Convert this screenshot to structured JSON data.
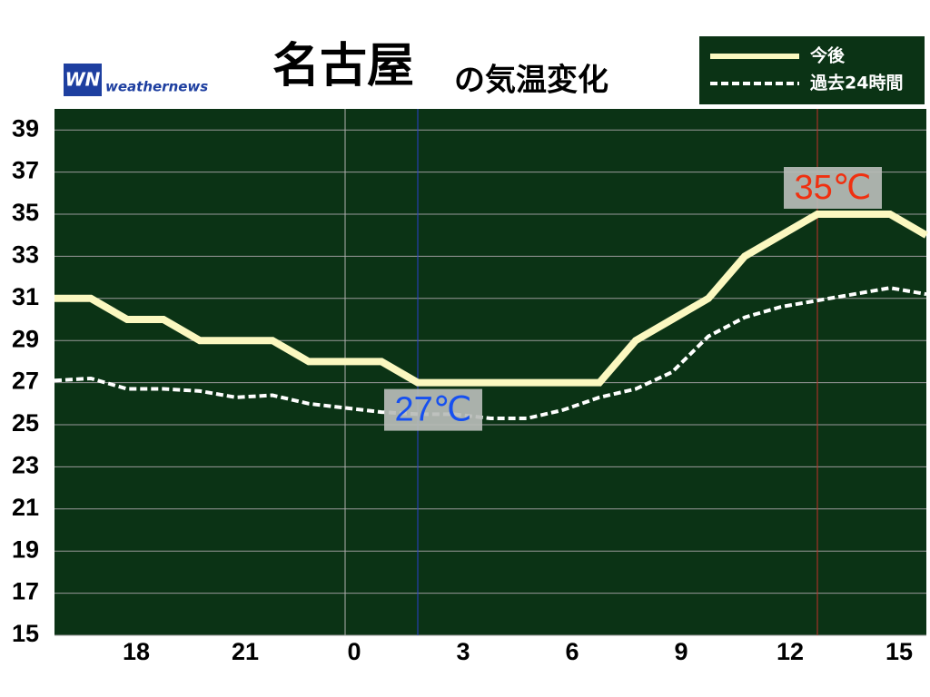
{
  "chart_data": {
    "type": "line",
    "title": "名古屋",
    "subtitle": "の気温変化",
    "logo_mark": "WN",
    "logo_text": "weathernews",
    "x": [
      16,
      17,
      18,
      19,
      20,
      21,
      22,
      23,
      24,
      25,
      26,
      27,
      28,
      29,
      30,
      31,
      32,
      33,
      34,
      35,
      36,
      37,
      38,
      39,
      40
    ],
    "series": [
      {
        "name": "今後",
        "color": "#fbf8c0",
        "style": "solid",
        "values": [
          31,
          31,
          30,
          30,
          29,
          29,
          29,
          28,
          28,
          28,
          27,
          27,
          27,
          27,
          27,
          27,
          29,
          30,
          31,
          33,
          34,
          35,
          35,
          35,
          34
        ]
      },
      {
        "name": "過去24時間",
        "color": "#ffffff",
        "style": "dashed",
        "values": [
          27.1,
          27.2,
          26.7,
          26.7,
          26.6,
          26.3,
          26.4,
          26.0,
          25.8,
          25.6,
          25.5,
          25.5,
          25.3,
          25.3,
          25.7,
          26.3,
          26.7,
          27.5,
          29.2,
          30.1,
          30.6,
          30.9,
          31.2,
          31.5,
          31.2
        ]
      }
    ],
    "xlim": [
      16,
      40
    ],
    "xticks": [
      {
        "value": 18,
        "label": "18"
      },
      {
        "value": 21,
        "label": "21"
      },
      {
        "value": 24,
        "label": "0"
      },
      {
        "value": 27,
        "label": "3"
      },
      {
        "value": 30,
        "label": "6"
      },
      {
        "value": 33,
        "label": "9"
      },
      {
        "value": 36,
        "label": "12"
      },
      {
        "value": 39,
        "label": "15"
      }
    ],
    "ylim": [
      15,
      40
    ],
    "yticks": [
      15,
      17,
      19,
      21,
      23,
      25,
      27,
      29,
      31,
      33,
      35,
      37,
      39
    ],
    "grid": true,
    "background": "#0b3315",
    "vlines": [
      {
        "x": 24,
        "color": "#b0b0b0"
      },
      {
        "x": 26,
        "color": "#2a3fd0"
      },
      {
        "x": 37,
        "color": "#c0302a"
      }
    ],
    "annotations": [
      {
        "text": "27℃",
        "x": 26,
        "y": 27,
        "color": "#1650f0",
        "position": "below"
      },
      {
        "text": "35℃",
        "x": 37,
        "y": 35,
        "color": "#f03010",
        "position": "above"
      }
    ],
    "legend": "top-right"
  }
}
